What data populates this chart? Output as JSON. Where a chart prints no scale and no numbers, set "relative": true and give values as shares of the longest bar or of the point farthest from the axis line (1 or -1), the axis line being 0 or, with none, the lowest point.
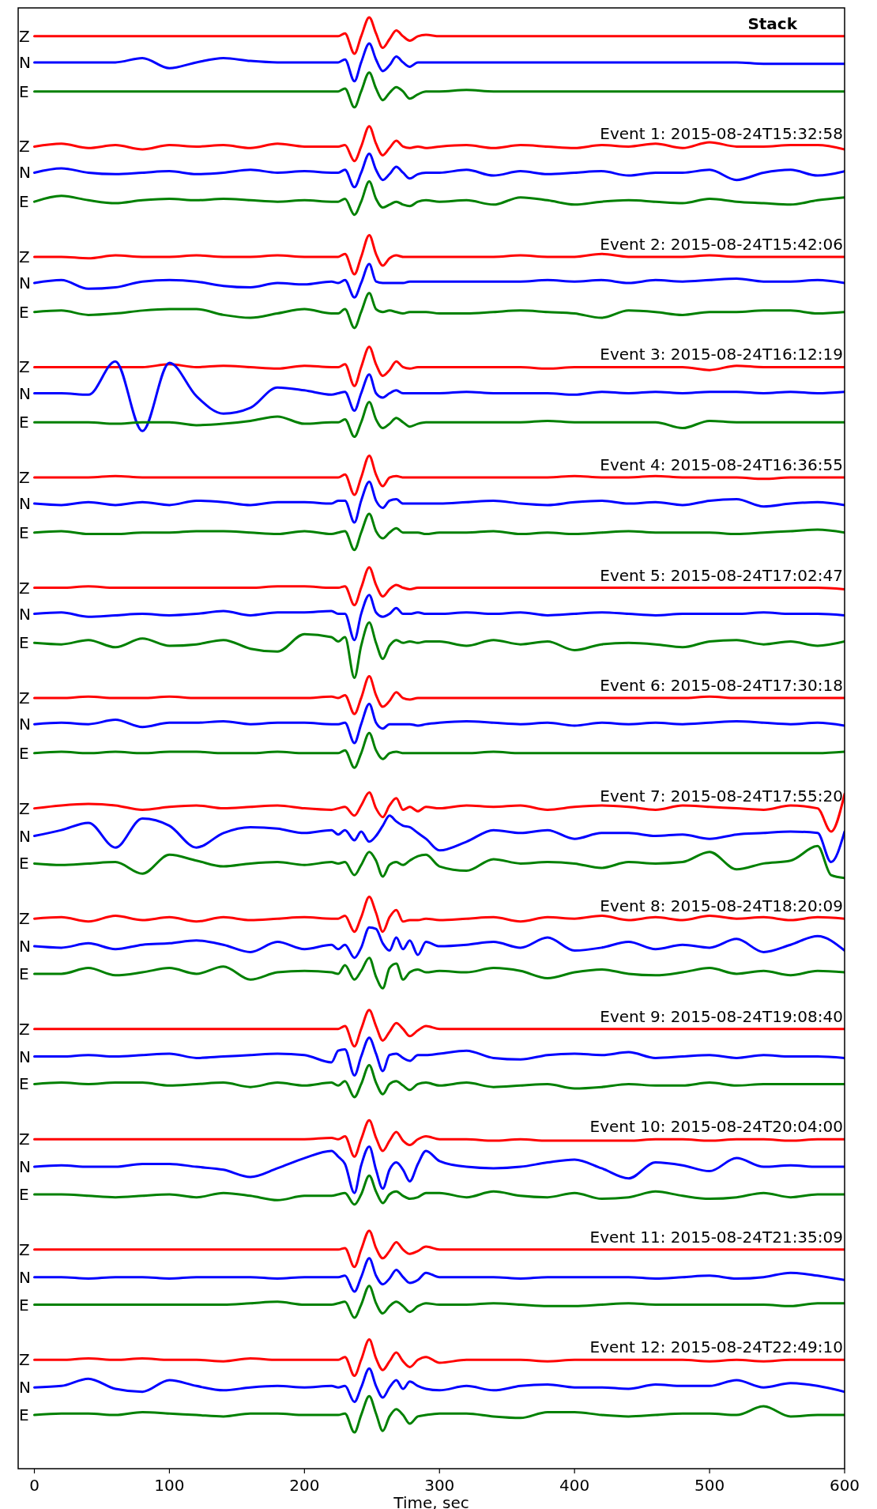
{
  "chart_data": {
    "type": "line",
    "relative": true,
    "xlabel": "Time, sec",
    "xlim": [
      -12,
      600
    ],
    "xticks": [
      0,
      100,
      200,
      300,
      400,
      500,
      600
    ],
    "x": [
      0,
      20,
      40,
      60,
      80,
      100,
      120,
      140,
      160,
      180,
      200,
      220,
      225,
      230,
      237,
      242,
      248,
      253,
      258,
      263,
      268,
      273,
      278,
      284,
      290,
      300,
      320,
      340,
      360,
      380,
      400,
      420,
      440,
      460,
      480,
      500,
      520,
      540,
      560,
      580,
      600
    ],
    "annotations": [
      "Stack",
      "Event 1: 2015-08-24T15:32:58",
      "Event 2: 2015-08-24T15:42:06",
      "Event 3: 2015-08-24T16:12:19",
      "Event 4: 2015-08-24T16:36:55",
      "Event 5: 2015-08-24T17:02:47",
      "Event 6: 2015-08-24T17:30:18",
      "Event 7: 2015-08-24T17:55:20",
      "Event 8: 2015-08-24T18:20:09",
      "Event 9: 2015-08-24T19:08:40",
      "Event 10: 2015-08-24T20:04:00",
      "Event 11: 2015-08-24T21:35:09",
      "Event 12: 2015-08-24T22:49:10"
    ],
    "series": [
      {
        "name": "Z",
        "color": "#ff0000",
        "values": [
          0.987,
          0.987,
          0.987,
          0.987,
          0.987,
          0.987,
          0.987,
          0.987,
          0.987,
          0.987,
          0.987,
          0.987,
          0.987,
          0.989,
          0.975,
          0.987,
          1,
          0.989,
          0.979,
          0.985,
          0.991,
          0.987,
          0.984,
          0.987,
          0.988,
          0.987,
          0.987,
          0.987,
          0.987,
          0.987,
          0.987,
          0.987,
          0.987,
          0.987,
          0.987,
          0.987,
          0.987,
          0.987,
          0.987,
          0.987,
          0.987
        ]
      },
      {
        "name": "N",
        "color": "#0000ff",
        "values": [
          0.969,
          0.969,
          0.969,
          0.969,
          0.972,
          0.965,
          0.969,
          0.972,
          0.97,
          0.969,
          0.969,
          0.969,
          0.969,
          0.971,
          0.956,
          0.969,
          0.982,
          0.971,
          0.963,
          0.967,
          0.973,
          0.969,
          0.966,
          0.969,
          0.969,
          0.969,
          0.969,
          0.969,
          0.969,
          0.969,
          0.969,
          0.969,
          0.969,
          0.969,
          0.969,
          0.969,
          0.969,
          0.968,
          0.968,
          0.968,
          0.968
        ]
      },
      {
        "name": "E",
        "color": "#008000",
        "values": [
          0.949,
          0.949,
          0.949,
          0.949,
          0.949,
          0.949,
          0.949,
          0.949,
          0.949,
          0.949,
          0.949,
          0.949,
          0.949,
          0.951,
          0.938,
          0.949,
          0.962,
          0.951,
          0.943,
          0.948,
          0.952,
          0.949,
          0.944,
          0.947,
          0.949,
          0.949,
          0.95,
          0.949,
          0.949,
          0.949,
          0.949,
          0.949,
          0.949,
          0.949,
          0.949,
          0.949,
          0.949,
          0.949,
          0.949,
          0.949,
          0.949
        ]
      },
      {
        "name": "Z",
        "color": "#ff0000",
        "values": [
          0.911,
          0.913,
          0.91,
          0.912,
          0.909,
          0.912,
          0.911,
          0.912,
          0.91,
          0.913,
          0.911,
          0.911,
          0.911,
          0.912,
          0.901,
          0.911,
          0.925,
          0.913,
          0.905,
          0.91,
          0.915,
          0.911,
          0.91,
          0.911,
          0.91,
          0.911,
          0.912,
          0.91,
          0.912,
          0.911,
          0.91,
          0.912,
          0.911,
          0.913,
          0.91,
          0.914,
          0.911,
          0.911,
          0.912,
          0.912,
          0.909
        ]
      },
      {
        "name": "N",
        "color": "#0000ff",
        "values": [
          0.893,
          0.896,
          0.893,
          0.892,
          0.893,
          0.894,
          0.892,
          0.893,
          0.895,
          0.893,
          0.894,
          0.893,
          0.893,
          0.895,
          0.883,
          0.893,
          0.906,
          0.895,
          0.888,
          0.892,
          0.897,
          0.893,
          0.889,
          0.892,
          0.893,
          0.893,
          0.895,
          0.891,
          0.894,
          0.892,
          0.893,
          0.894,
          0.891,
          0.893,
          0.893,
          0.895,
          0.888,
          0.893,
          0.895,
          0.891,
          0.894
        ]
      },
      {
        "name": "E",
        "color": "#008000",
        "values": [
          0.873,
          0.877,
          0.874,
          0.872,
          0.874,
          0.875,
          0.874,
          0.875,
          0.874,
          0.873,
          0.874,
          0.873,
          0.873,
          0.875,
          0.864,
          0.873,
          0.887,
          0.875,
          0.869,
          0.871,
          0.873,
          0.871,
          0.87,
          0.873,
          0.874,
          0.873,
          0.874,
          0.871,
          0.876,
          0.874,
          0.871,
          0.873,
          0.874,
          0.873,
          0.872,
          0.875,
          0.873,
          0.872,
          0.871,
          0.874,
          0.876
        ]
      },
      {
        "name": "Z",
        "color": "#ff0000",
        "values": [
          0.835,
          0.835,
          0.834,
          0.836,
          0.835,
          0.835,
          0.836,
          0.835,
          0.835,
          0.836,
          0.835,
          0.835,
          0.835,
          0.837,
          0.823,
          0.835,
          0.85,
          0.837,
          0.829,
          0.834,
          0.836,
          0.835,
          0.835,
          0.835,
          0.835,
          0.835,
          0.835,
          0.835,
          0.836,
          0.835,
          0.835,
          0.837,
          0.835,
          0.835,
          0.835,
          0.836,
          0.835,
          0.835,
          0.835,
          0.835,
          0.835
        ]
      },
      {
        "name": "N",
        "color": "#0000ff",
        "values": [
          0.817,
          0.819,
          0.813,
          0.814,
          0.818,
          0.819,
          0.818,
          0.815,
          0.814,
          0.817,
          0.816,
          0.818,
          0.817,
          0.819,
          0.807,
          0.817,
          0.83,
          0.818,
          0.817,
          0.817,
          0.817,
          0.817,
          0.818,
          0.818,
          0.818,
          0.818,
          0.818,
          0.818,
          0.818,
          0.819,
          0.818,
          0.819,
          0.817,
          0.819,
          0.818,
          0.819,
          0.82,
          0.818,
          0.818,
          0.819,
          0.817
        ]
      },
      {
        "name": "E",
        "color": "#008000",
        "values": [
          0.797,
          0.798,
          0.795,
          0.796,
          0.798,
          0.799,
          0.799,
          0.795,
          0.793,
          0.796,
          0.799,
          0.796,
          0.796,
          0.799,
          0.786,
          0.797,
          0.81,
          0.799,
          0.797,
          0.798,
          0.797,
          0.796,
          0.797,
          0.797,
          0.797,
          0.796,
          0.796,
          0.797,
          0.798,
          0.797,
          0.796,
          0.793,
          0.798,
          0.797,
          0.795,
          0.797,
          0.797,
          0.798,
          0.798,
          0.796,
          0.797
        ]
      },
      {
        "name": "Z",
        "color": "#ff0000",
        "values": [
          0.759,
          0.759,
          0.759,
          0.759,
          0.759,
          0.761,
          0.759,
          0.76,
          0.759,
          0.758,
          0.76,
          0.759,
          0.759,
          0.761,
          0.746,
          0.759,
          0.773,
          0.761,
          0.753,
          0.757,
          0.763,
          0.759,
          0.758,
          0.759,
          0.759,
          0.759,
          0.759,
          0.759,
          0.759,
          0.758,
          0.759,
          0.759,
          0.759,
          0.759,
          0.759,
          0.757,
          0.76,
          0.759,
          0.759,
          0.759,
          0.759
        ]
      },
      {
        "name": "N",
        "color": "#0000ff",
        "values": [
          0.741,
          0.741,
          0.74,
          0.763,
          0.715,
          0.762,
          0.739,
          0.727,
          0.731,
          0.745,
          0.743,
          0.74,
          0.741,
          0.742,
          0.729,
          0.741,
          0.754,
          0.741,
          0.738,
          0.741,
          0.743,
          0.741,
          0.741,
          0.741,
          0.741,
          0.741,
          0.742,
          0.741,
          0.741,
          0.741,
          0.74,
          0.742,
          0.741,
          0.742,
          0.741,
          0.742,
          0.742,
          0.741,
          0.742,
          0.741,
          0.742
        ]
      },
      {
        "name": "E",
        "color": "#008000",
        "values": [
          0.721,
          0.721,
          0.721,
          0.72,
          0.721,
          0.721,
          0.719,
          0.72,
          0.722,
          0.725,
          0.72,
          0.721,
          0.721,
          0.723,
          0.711,
          0.721,
          0.735,
          0.723,
          0.717,
          0.72,
          0.724,
          0.721,
          0.718,
          0.72,
          0.721,
          0.721,
          0.721,
          0.721,
          0.721,
          0.722,
          0.721,
          0.721,
          0.721,
          0.721,
          0.717,
          0.722,
          0.721,
          0.721,
          0.721,
          0.721,
          0.721
        ]
      },
      {
        "name": "Z",
        "color": "#ff0000",
        "values": [
          0.683,
          0.683,
          0.683,
          0.684,
          0.683,
          0.683,
          0.683,
          0.683,
          0.683,
          0.683,
          0.683,
          0.683,
          0.683,
          0.685,
          0.671,
          0.683,
          0.698,
          0.685,
          0.677,
          0.683,
          0.684,
          0.683,
          0.683,
          0.683,
          0.683,
          0.683,
          0.683,
          0.683,
          0.683,
          0.683,
          0.684,
          0.683,
          0.683,
          0.684,
          0.683,
          0.683,
          0.683,
          0.682,
          0.683,
          0.683,
          0.683
        ]
      },
      {
        "name": "N",
        "color": "#0000ff",
        "values": [
          0.665,
          0.664,
          0.666,
          0.664,
          0.666,
          0.664,
          0.667,
          0.666,
          0.664,
          0.666,
          0.666,
          0.665,
          0.667,
          0.667,
          0.652,
          0.667,
          0.68,
          0.667,
          0.662,
          0.667,
          0.668,
          0.665,
          0.665,
          0.665,
          0.665,
          0.665,
          0.666,
          0.667,
          0.665,
          0.664,
          0.666,
          0.667,
          0.665,
          0.666,
          0.664,
          0.667,
          0.668,
          0.663,
          0.665,
          0.666,
          0.664
        ]
      },
      {
        "name": "E",
        "color": "#008000",
        "values": [
          0.645,
          0.646,
          0.644,
          0.644,
          0.645,
          0.645,
          0.646,
          0.646,
          0.645,
          0.644,
          0.646,
          0.644,
          0.645,
          0.646,
          0.633,
          0.645,
          0.658,
          0.646,
          0.641,
          0.645,
          0.648,
          0.645,
          0.645,
          0.645,
          0.644,
          0.645,
          0.645,
          0.646,
          0.644,
          0.645,
          0.644,
          0.645,
          0.646,
          0.645,
          0.645,
          0.645,
          0.644,
          0.645,
          0.646,
          0.647,
          0.645
        ]
      },
      {
        "name": "Z",
        "color": "#ff0000",
        "values": [
          0.607,
          0.607,
          0.608,
          0.607,
          0.607,
          0.607,
          0.607,
          0.607,
          0.607,
          0.608,
          0.608,
          0.607,
          0.607,
          0.608,
          0.595,
          0.607,
          0.621,
          0.609,
          0.601,
          0.606,
          0.609,
          0.607,
          0.606,
          0.607,
          0.607,
          0.607,
          0.607,
          0.607,
          0.607,
          0.607,
          0.607,
          0.607,
          0.607,
          0.607,
          0.607,
          0.607,
          0.607,
          0.607,
          0.607,
          0.607,
          0.606
        ]
      },
      {
        "name": "N",
        "color": "#0000ff",
        "values": [
          0.589,
          0.59,
          0.587,
          0.588,
          0.589,
          0.588,
          0.589,
          0.591,
          0.588,
          0.59,
          0.59,
          0.591,
          0.589,
          0.589,
          0.571,
          0.589,
          0.602,
          0.59,
          0.587,
          0.589,
          0.593,
          0.589,
          0.589,
          0.59,
          0.589,
          0.589,
          0.59,
          0.589,
          0.59,
          0.588,
          0.589,
          0.59,
          0.589,
          0.588,
          0.589,
          0.589,
          0.589,
          0.59,
          0.589,
          0.589,
          0.588
        ]
      },
      {
        "name": "E",
        "color": "#008000",
        "values": [
          0.569,
          0.568,
          0.571,
          0.566,
          0.572,
          0.567,
          0.568,
          0.571,
          0.565,
          0.563,
          0.575,
          0.573,
          0.57,
          0.573,
          0.545,
          0.567,
          0.583,
          0.569,
          0.558,
          0.567,
          0.571,
          0.569,
          0.57,
          0.569,
          0.57,
          0.57,
          0.567,
          0.571,
          0.568,
          0.57,
          0.564,
          0.568,
          0.569,
          0.568,
          0.566,
          0.57,
          0.571,
          0.568,
          0.57,
          0.567,
          0.57
        ]
      },
      {
        "name": "Z",
        "color": "#ff0000",
        "values": [
          0.531,
          0.531,
          0.532,
          0.531,
          0.531,
          0.532,
          0.531,
          0.531,
          0.531,
          0.531,
          0.531,
          0.532,
          0.531,
          0.533,
          0.52,
          0.531,
          0.546,
          0.533,
          0.525,
          0.529,
          0.535,
          0.531,
          0.53,
          0.531,
          0.531,
          0.531,
          0.531,
          0.531,
          0.531,
          0.531,
          0.531,
          0.531,
          0.531,
          0.531,
          0.531,
          0.532,
          0.531,
          0.531,
          0.531,
          0.531,
          0.531
        ]
      },
      {
        "name": "N",
        "color": "#0000ff",
        "values": [
          0.513,
          0.514,
          0.513,
          0.516,
          0.511,
          0.514,
          0.514,
          0.515,
          0.513,
          0.514,
          0.514,
          0.513,
          0.513,
          0.514,
          0.5,
          0.513,
          0.527,
          0.514,
          0.51,
          0.513,
          0.513,
          0.513,
          0.513,
          0.512,
          0.513,
          0.514,
          0.515,
          0.514,
          0.513,
          0.514,
          0.512,
          0.514,
          0.513,
          0.514,
          0.513,
          0.514,
          0.515,
          0.514,
          0.513,
          0.514,
          0.512
        ]
      },
      {
        "name": "E",
        "color": "#008000",
        "values": [
          0.493,
          0.494,
          0.493,
          0.494,
          0.493,
          0.494,
          0.494,
          0.493,
          0.493,
          0.494,
          0.493,
          0.493,
          0.493,
          0.495,
          0.483,
          0.493,
          0.507,
          0.495,
          0.489,
          0.493,
          0.494,
          0.493,
          0.493,
          0.493,
          0.493,
          0.493,
          0.493,
          0.494,
          0.493,
          0.493,
          0.493,
          0.493,
          0.493,
          0.493,
          0.493,
          0.493,
          0.493,
          0.493,
          0.493,
          0.493,
          0.494
        ]
      },
      {
        "name": "Z",
        "color": "#ff0000",
        "x": [
          0,
          20,
          40,
          60,
          80,
          100,
          120,
          140,
          160,
          180,
          200,
          220,
          225,
          230,
          237,
          242,
          248,
          253,
          258,
          263,
          268,
          273,
          278,
          284,
          290,
          300,
          320,
          340,
          360,
          380,
          400,
          420,
          440,
          460,
          480,
          500,
          520,
          540,
          560,
          580,
          590,
          600
        ],
        "values": [
          0.455,
          0.457,
          0.458,
          0.457,
          0.454,
          0.456,
          0.457,
          0.455,
          0.456,
          0.457,
          0.455,
          0.454,
          0.455,
          0.456,
          0.45,
          0.457,
          0.466,
          0.455,
          0.449,
          0.457,
          0.462,
          0.454,
          0.456,
          0.453,
          0.456,
          0.455,
          0.457,
          0.456,
          0.457,
          0.454,
          0.456,
          0.457,
          0.456,
          0.454,
          0.457,
          0.456,
          0.455,
          0.454,
          0.457,
          0.455,
          0.439,
          0.465
        ]
      },
      {
        "name": "N",
        "color": "#0000ff",
        "x": [
          0,
          20,
          40,
          60,
          80,
          100,
          120,
          140,
          160,
          180,
          200,
          220,
          225,
          230,
          237,
          242,
          248,
          253,
          258,
          263,
          268,
          273,
          278,
          284,
          290,
          300,
          320,
          340,
          360,
          380,
          400,
          420,
          440,
          460,
          480,
          500,
          520,
          540,
          560,
          580,
          590,
          600
        ],
        "values": [
          0.436,
          0.44,
          0.445,
          0.428,
          0.448,
          0.443,
          0.428,
          0.438,
          0.442,
          0.441,
          0.438,
          0.44,
          0.437,
          0.44,
          0.433,
          0.439,
          0.432,
          0.436,
          0.443,
          0.45,
          0.446,
          0.443,
          0.442,
          0.438,
          0.434,
          0.426,
          0.432,
          0.44,
          0.438,
          0.44,
          0.434,
          0.438,
          0.438,
          0.436,
          0.437,
          0.434,
          0.437,
          0.438,
          0.439,
          0.438,
          0.418,
          0.439
        ]
      },
      {
        "name": "E",
        "color": "#008000",
        "x": [
          0,
          20,
          40,
          60,
          80,
          100,
          120,
          140,
          160,
          180,
          200,
          220,
          225,
          230,
          237,
          242,
          248,
          253,
          258,
          263,
          268,
          273,
          278,
          284,
          290,
          300,
          320,
          340,
          360,
          380,
          400,
          420,
          440,
          460,
          480,
          500,
          520,
          540,
          560,
          580,
          590,
          600
        ],
        "values": [
          0.417,
          0.416,
          0.417,
          0.418,
          0.41,
          0.423,
          0.419,
          0.415,
          0.417,
          0.418,
          0.416,
          0.418,
          0.417,
          0.418,
          0.409,
          0.416,
          0.425,
          0.419,
          0.408,
          0.416,
          0.418,
          0.416,
          0.419,
          0.422,
          0.423,
          0.415,
          0.412,
          0.42,
          0.417,
          0.418,
          0.417,
          0.414,
          0.418,
          0.417,
          0.418,
          0.425,
          0.413,
          0.417,
          0.419,
          0.429,
          0.409,
          0.407
        ]
      },
      {
        "name": "Z",
        "color": "#ff0000",
        "values": [
          0.379,
          0.38,
          0.377,
          0.381,
          0.378,
          0.38,
          0.377,
          0.38,
          0.378,
          0.379,
          0.38,
          0.379,
          0.379,
          0.381,
          0.37,
          0.38,
          0.394,
          0.383,
          0.37,
          0.38,
          0.385,
          0.377,
          0.378,
          0.378,
          0.379,
          0.378,
          0.379,
          0.38,
          0.377,
          0.38,
          0.379,
          0.381,
          0.378,
          0.38,
          0.378,
          0.381,
          0.379,
          0.38,
          0.378,
          0.38,
          0.379
        ]
      },
      {
        "name": "N",
        "color": "#0000ff",
        "values": [
          0.36,
          0.359,
          0.362,
          0.358,
          0.361,
          0.362,
          0.364,
          0.361,
          0.356,
          0.363,
          0.358,
          0.361,
          0.358,
          0.361,
          0.352,
          0.359,
          0.373,
          0.372,
          0.362,
          0.357,
          0.366,
          0.358,
          0.364,
          0.354,
          0.363,
          0.36,
          0.361,
          0.363,
          0.359,
          0.366,
          0.357,
          0.359,
          0.363,
          0.358,
          0.361,
          0.359,
          0.365,
          0.356,
          0.361,
          0.367,
          0.357
        ]
      },
      {
        "name": "E",
        "color": "#008000",
        "values": [
          0.341,
          0.341,
          0.345,
          0.34,
          0.342,
          0.345,
          0.341,
          0.346,
          0.337,
          0.342,
          0.343,
          0.342,
          0.341,
          0.347,
          0.337,
          0.343,
          0.352,
          0.339,
          0.331,
          0.345,
          0.348,
          0.337,
          0.342,
          0.344,
          0.342,
          0.343,
          0.342,
          0.345,
          0.343,
          0.338,
          0.342,
          0.344,
          0.341,
          0.34,
          0.342,
          0.345,
          0.341,
          0.343,
          0.34,
          0.343,
          0.342
        ]
      },
      {
        "name": "Z",
        "color": "#ff0000",
        "values": [
          0.303,
          0.303,
          0.303,
          0.303,
          0.303,
          0.303,
          0.303,
          0.303,
          0.303,
          0.303,
          0.303,
          0.303,
          0.303,
          0.305,
          0.291,
          0.303,
          0.316,
          0.305,
          0.295,
          0.301,
          0.307,
          0.303,
          0.298,
          0.302,
          0.305,
          0.303,
          0.303,
          0.303,
          0.303,
          0.303,
          0.303,
          0.303,
          0.303,
          0.303,
          0.303,
          0.303,
          0.303,
          0.303,
          0.303,
          0.303,
          0.303
        ]
      },
      {
        "name": "N",
        "color": "#0000ff",
        "values": [
          0.284,
          0.284,
          0.285,
          0.284,
          0.285,
          0.286,
          0.283,
          0.284,
          0.285,
          0.286,
          0.285,
          0.28,
          0.288,
          0.289,
          0.271,
          0.284,
          0.297,
          0.286,
          0.274,
          0.285,
          0.286,
          0.283,
          0.281,
          0.285,
          0.285,
          0.286,
          0.288,
          0.283,
          0.282,
          0.285,
          0.286,
          0.285,
          0.287,
          0.283,
          0.284,
          0.285,
          0.283,
          0.285,
          0.284,
          0.284,
          0.283
        ]
      },
      {
        "name": "E",
        "color": "#008000",
        "values": [
          0.265,
          0.266,
          0.265,
          0.266,
          0.266,
          0.264,
          0.265,
          0.266,
          0.263,
          0.266,
          0.264,
          0.266,
          0.264,
          0.267,
          0.256,
          0.265,
          0.278,
          0.266,
          0.258,
          0.265,
          0.267,
          0.264,
          0.261,
          0.265,
          0.266,
          0.264,
          0.266,
          0.263,
          0.264,
          0.265,
          0.262,
          0.263,
          0.265,
          0.264,
          0.264,
          0.266,
          0.264,
          0.265,
          0.265,
          0.265,
          0.265
        ]
      },
      {
        "name": "Z",
        "color": "#ff0000",
        "values": [
          0.227,
          0.227,
          0.227,
          0.227,
          0.227,
          0.227,
          0.227,
          0.227,
          0.227,
          0.227,
          0.227,
          0.228,
          0.227,
          0.229,
          0.215,
          0.227,
          0.24,
          0.228,
          0.219,
          0.226,
          0.232,
          0.226,
          0.223,
          0.227,
          0.229,
          0.227,
          0.227,
          0.226,
          0.227,
          0.226,
          0.226,
          0.226,
          0.226,
          0.227,
          0.227,
          0.226,
          0.227,
          0.227,
          0.226,
          0.227,
          0.227
        ]
      },
      {
        "name": "N",
        "color": "#0000ff",
        "values": [
          0.208,
          0.209,
          0.208,
          0.208,
          0.21,
          0.21,
          0.208,
          0.206,
          0.201,
          0.207,
          0.214,
          0.219,
          0.215,
          0.21,
          0.19,
          0.209,
          0.222,
          0.206,
          0.193,
          0.206,
          0.211,
          0.206,
          0.198,
          0.21,
          0.219,
          0.212,
          0.208,
          0.207,
          0.208,
          0.211,
          0.213,
          0.207,
          0.2,
          0.211,
          0.209,
          0.205,
          0.214,
          0.208,
          0.209,
          0.208,
          0.208
        ]
      },
      {
        "name": "E",
        "color": "#008000",
        "values": [
          0.189,
          0.189,
          0.188,
          0.187,
          0.188,
          0.189,
          0.187,
          0.19,
          0.188,
          0.185,
          0.188,
          0.188,
          0.189,
          0.19,
          0.182,
          0.189,
          0.202,
          0.191,
          0.183,
          0.189,
          0.191,
          0.188,
          0.186,
          0.187,
          0.19,
          0.19,
          0.187,
          0.191,
          0.188,
          0.187,
          0.19,
          0.186,
          0.187,
          0.191,
          0.188,
          0.186,
          0.187,
          0.19,
          0.187,
          0.189,
          0.189
        ]
      },
      {
        "name": "Z",
        "color": "#ff0000",
        "values": [
          0.151,
          0.151,
          0.151,
          0.151,
          0.151,
          0.151,
          0.151,
          0.151,
          0.151,
          0.151,
          0.151,
          0.151,
          0.151,
          0.152,
          0.139,
          0.151,
          0.164,
          0.152,
          0.145,
          0.15,
          0.156,
          0.151,
          0.148,
          0.15,
          0.153,
          0.151,
          0.151,
          0.151,
          0.151,
          0.151,
          0.151,
          0.151,
          0.151,
          0.151,
          0.151,
          0.151,
          0.151,
          0.151,
          0.151,
          0.151,
          0.151
        ]
      },
      {
        "name": "N",
        "color": "#0000ff",
        "values": [
          0.132,
          0.132,
          0.131,
          0.132,
          0.132,
          0.131,
          0.132,
          0.132,
          0.132,
          0.131,
          0.132,
          0.132,
          0.132,
          0.133,
          0.122,
          0.132,
          0.145,
          0.133,
          0.127,
          0.131,
          0.137,
          0.132,
          0.128,
          0.13,
          0.135,
          0.132,
          0.132,
          0.132,
          0.131,
          0.132,
          0.132,
          0.132,
          0.132,
          0.131,
          0.132,
          0.133,
          0.131,
          0.132,
          0.135,
          0.133,
          0.13
        ]
      },
      {
        "name": "E",
        "color": "#008000",
        "values": [
          0.113,
          0.113,
          0.113,
          0.113,
          0.113,
          0.113,
          0.113,
          0.113,
          0.114,
          0.115,
          0.113,
          0.113,
          0.114,
          0.115,
          0.104,
          0.113,
          0.126,
          0.114,
          0.107,
          0.112,
          0.115,
          0.112,
          0.108,
          0.112,
          0.114,
          0.113,
          0.113,
          0.114,
          0.113,
          0.112,
          0.112,
          0.113,
          0.114,
          0.113,
          0.113,
          0.113,
          0.113,
          0.113,
          0.112,
          0.114,
          0.114
        ]
      },
      {
        "name": "Z",
        "color": "#ff0000",
        "values": [
          0.075,
          0.075,
          0.076,
          0.075,
          0.076,
          0.075,
          0.075,
          0.074,
          0.076,
          0.075,
          0.075,
          0.075,
          0.075,
          0.077,
          0.064,
          0.075,
          0.089,
          0.076,
          0.068,
          0.074,
          0.08,
          0.074,
          0.07,
          0.075,
          0.077,
          0.073,
          0.075,
          0.075,
          0.075,
          0.074,
          0.075,
          0.075,
          0.075,
          0.075,
          0.075,
          0.074,
          0.075,
          0.074,
          0.075,
          0.075,
          0.075
        ]
      },
      {
        "name": "N",
        "color": "#0000ff",
        "values": [
          0.056,
          0.057,
          0.062,
          0.055,
          0.053,
          0.061,
          0.057,
          0.054,
          0.056,
          0.057,
          0.056,
          0.057,
          0.056,
          0.057,
          0.046,
          0.056,
          0.069,
          0.057,
          0.049,
          0.056,
          0.061,
          0.055,
          0.06,
          0.057,
          0.055,
          0.054,
          0.057,
          0.054,
          0.057,
          0.058,
          0.056,
          0.056,
          0.055,
          0.058,
          0.057,
          0.057,
          0.061,
          0.056,
          0.059,
          0.057,
          0.053
        ]
      },
      {
        "name": "E",
        "color": "#008000",
        "values": [
          0.037,
          0.038,
          0.038,
          0.037,
          0.039,
          0.038,
          0.037,
          0.036,
          0.038,
          0.038,
          0.037,
          0.037,
          0.037,
          0.038,
          0.025,
          0.037,
          0.05,
          0.038,
          0.026,
          0.036,
          0.041,
          0.037,
          0.031,
          0.036,
          0.037,
          0.038,
          0.038,
          0.036,
          0.035,
          0.039,
          0.039,
          0.037,
          0.036,
          0.037,
          0.038,
          0.038,
          0.037,
          0.043,
          0.036,
          0.037,
          0.037
        ]
      }
    ]
  }
}
